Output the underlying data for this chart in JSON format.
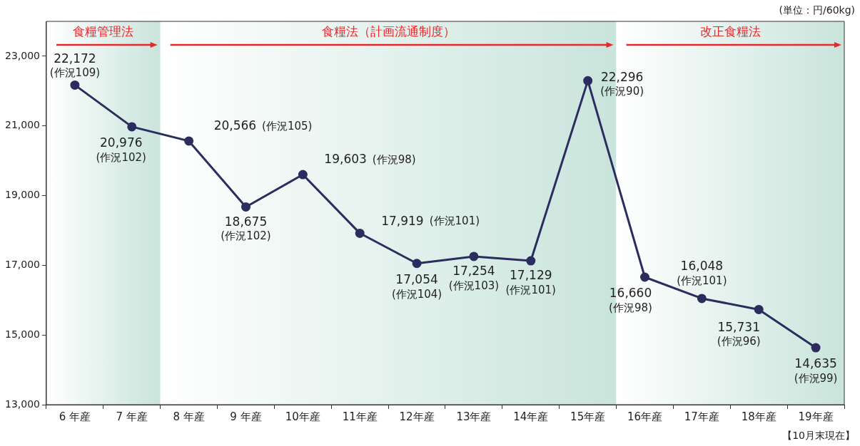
{
  "chart_data": {
    "type": "line",
    "categories": [
      "6 年産",
      "7 年産",
      "8 年産",
      "9 年産",
      "10年産",
      "11年産",
      "12年産",
      "13年産",
      "14年産",
      "15年産",
      "16年産",
      "17年産",
      "18年産",
      "19年産"
    ],
    "series": [
      {
        "color": "#2b2d5e",
        "values": [
          22172,
          20976,
          20566,
          18675,
          19603,
          17919,
          17054,
          17254,
          17129,
          22296,
          16660,
          16048,
          15731,
          14635
        ],
        "value_labels": [
          "22,172",
          "20,976",
          "20,566",
          "18,675",
          "19,603",
          "17,919",
          "17,054",
          "17,254",
          "17,129",
          "22,296",
          "16,660",
          "16,048",
          "15,731",
          "14,635"
        ]
      }
    ],
    "ylim": [
      13000,
      24000
    ],
    "yticks": [
      {
        "value": 13000,
        "label": "13,000"
      },
      {
        "value": 15000,
        "label": "15,000"
      },
      {
        "value": 17000,
        "label": "17,000"
      },
      {
        "value": 19000,
        "label": "19,000"
      },
      {
        "value": 21000,
        "label": "21,000"
      },
      {
        "value": 23000,
        "label": "23,000"
      }
    ],
    "bands": [
      {
        "axis": "x",
        "from": "6 年産",
        "to": "7 年産",
        "label": "食糧管理法",
        "color": "#c9e4dc"
      },
      {
        "axis": "x",
        "from": "8 年産",
        "to": "15年産",
        "label": "食糧法（計画流通制度）",
        "color": "#c9e4dc"
      },
      {
        "axis": "x",
        "from": "16年産",
        "to": "19年産",
        "label": "改正食糧法",
        "color": "#c9e4dc"
      }
    ],
    "annotations": [
      "(単位：円/60kg)",
      "【10月末現在】",
      "(作況109)",
      "(作況102)",
      "(作況105)",
      "(作況102)",
      "(作況98)",
      "(作況101)",
      "(作況104)",
      "(作況103)",
      "(作況101)",
      "(作況90)",
      "(作況98)",
      "(作況101)",
      "(作況96)",
      "(作況99)"
    ],
    "marker": "circle",
    "grid": false,
    "legend": false
  }
}
